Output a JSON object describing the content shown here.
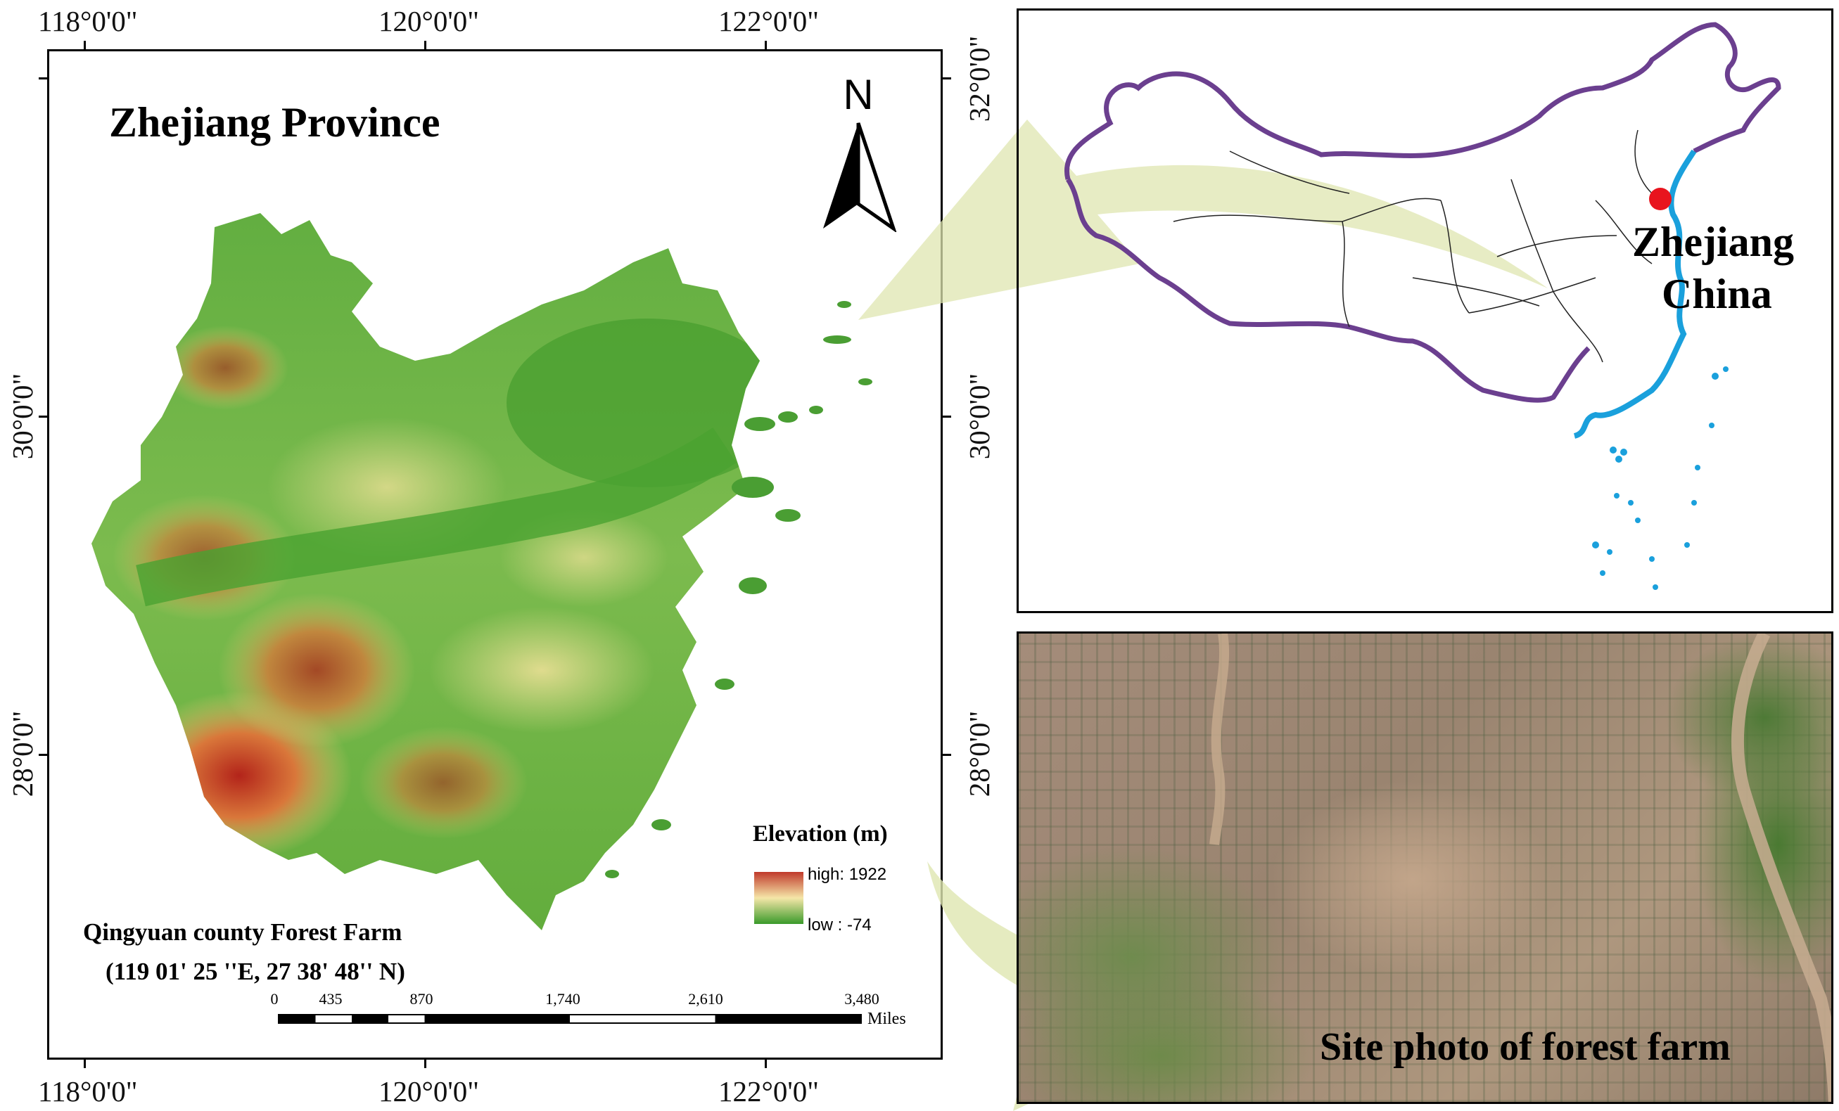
{
  "main_map": {
    "title": "Zhejiang Province",
    "top_lon_labels": [
      "118°0'0\"",
      "120°0'0\"",
      "122°0'0\""
    ],
    "bottom_lon_labels": [
      "118°0'0\"",
      "120°0'0\"",
      "122°0'0\""
    ],
    "left_lat_labels": [
      "30°0'0\"",
      "28°0'0\""
    ],
    "right_lat_labels": [
      "32°0'0\"",
      "30°0'0\"",
      "28°0'0\""
    ],
    "north_label": "N",
    "site_name": "Qingyuan county Forest Farm",
    "site_coords": "(119 01' 25 ''E, 27 38' 48'' N)"
  },
  "legend": {
    "title": "Elevation (m)",
    "high_label": "high: 1922",
    "low_label": "low : -74",
    "colors": [
      "#c0392b",
      "#f5e6a8",
      "#3a9a2a"
    ]
  },
  "scale_bar": {
    "ticks": [
      "0",
      "435",
      "870",
      "1,740",
      "2,610",
      "3,480"
    ],
    "unit": "Miles"
  },
  "inset_map": {
    "label_line1": "Zhejiang",
    "label_line2": "China",
    "border_color": "#6b3f8f",
    "coast_color": "#1aa0dc",
    "marker_color": "#e8141e"
  },
  "photo": {
    "caption": "Site photo of forest farm"
  },
  "colors": {
    "arrow": "#dfe6b0"
  }
}
